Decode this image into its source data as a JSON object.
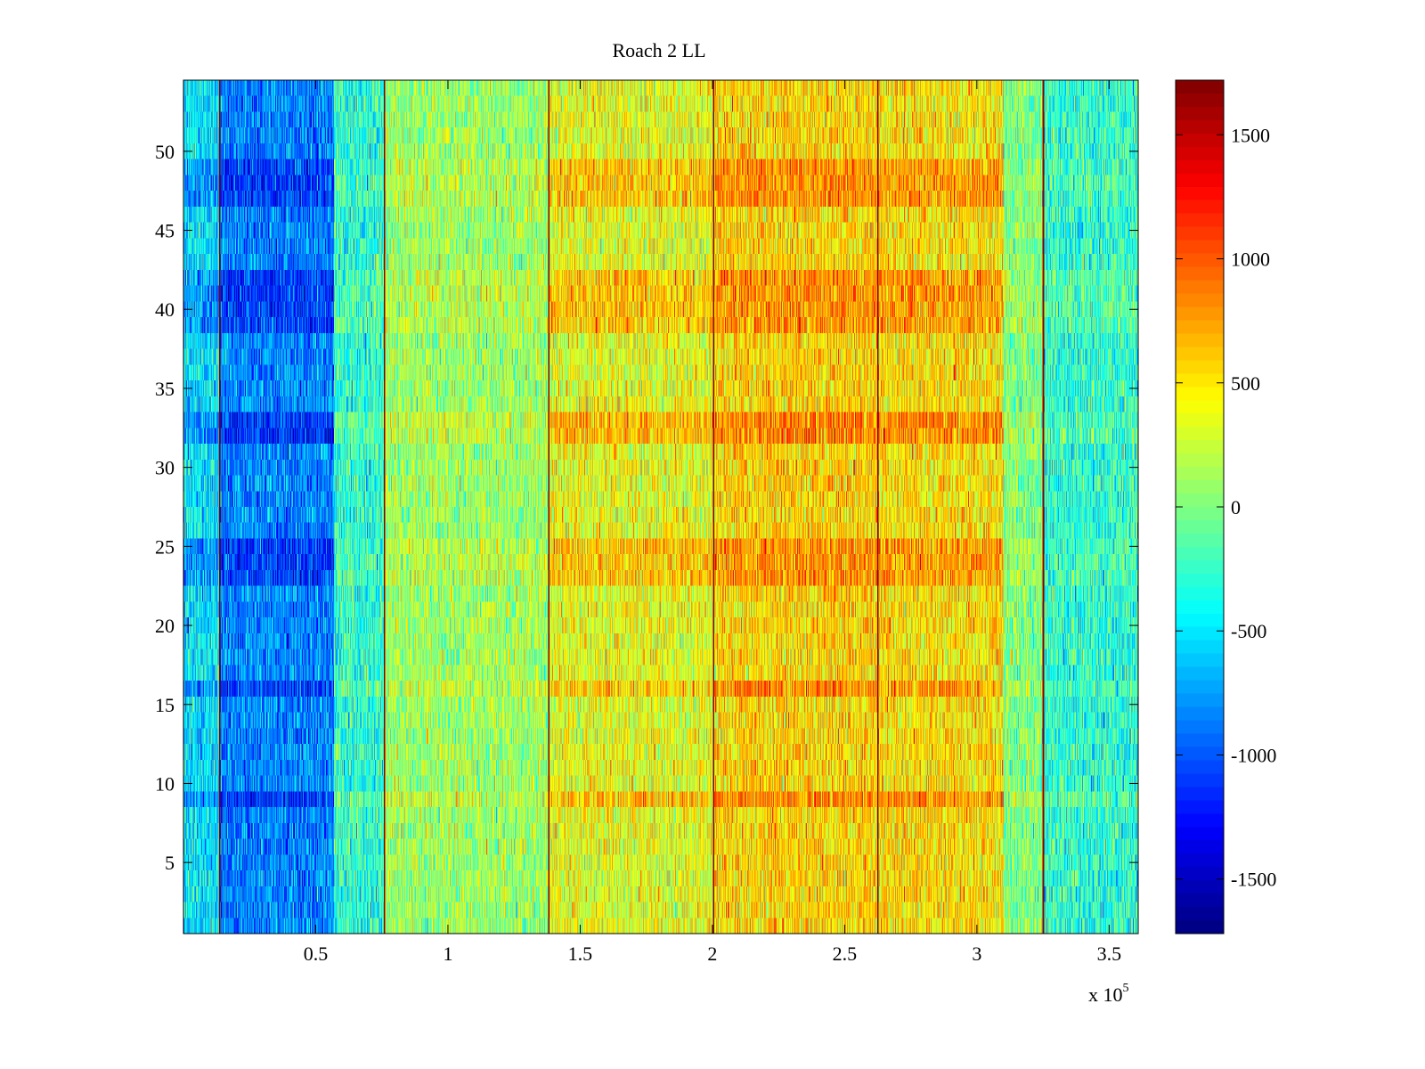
{
  "chart_data": {
    "type": "heatmap",
    "title": "Roach 2 LL",
    "xlabel": "",
    "ylabel": "",
    "x_multiplier_label": "x 10",
    "x_multiplier_exponent": "5",
    "xlim": [
      0,
      361000
    ],
    "ylim": [
      0.5,
      54.5
    ],
    "rows": 54,
    "columns": 2048,
    "x_ticks": [
      {
        "value": 50000,
        "label": "0.5"
      },
      {
        "value": 100000,
        "label": "1"
      },
      {
        "value": 150000,
        "label": "1.5"
      },
      {
        "value": 200000,
        "label": "2"
      },
      {
        "value": 250000,
        "label": "2.5"
      },
      {
        "value": 300000,
        "label": "3"
      },
      {
        "value": 350000,
        "label": "3.5"
      }
    ],
    "y_ticks": [
      {
        "value": 5,
        "label": "5"
      },
      {
        "value": 10,
        "label": "10"
      },
      {
        "value": 15,
        "label": "15"
      },
      {
        "value": 20,
        "label": "20"
      },
      {
        "value": 25,
        "label": "25"
      },
      {
        "value": 30,
        "label": "30"
      },
      {
        "value": 35,
        "label": "35"
      },
      {
        "value": 40,
        "label": "40"
      },
      {
        "value": 45,
        "label": "45"
      },
      {
        "value": 50,
        "label": "50"
      }
    ],
    "color_range": [
      -1720,
      1720
    ],
    "colormap": "jet",
    "colorbar_ticks": [
      {
        "value": 1500,
        "label": "1500"
      },
      {
        "value": 1000,
        "label": "1000"
      },
      {
        "value": 500,
        "label": "500"
      },
      {
        "value": 0,
        "label": "0"
      },
      {
        "value": -500,
        "label": "-500"
      },
      {
        "value": -1000,
        "label": "-1000"
      },
      {
        "value": -1500,
        "label": "-1500"
      }
    ],
    "saturated_columns_x": [
      13500,
      76000,
      138000,
      200500,
      262500,
      325000
    ],
    "saturated_value": 1720,
    "band_means": [
      {
        "x_range": [
          0,
          13500
        ],
        "mean": -500
      },
      {
        "x_range": [
          13500,
          57000
        ],
        "mean": -850
      },
      {
        "x_range": [
          57000,
          76000
        ],
        "mean": -300
      },
      {
        "x_range": [
          76000,
          138000
        ],
        "mean": 100
      },
      {
        "x_range": [
          138000,
          200500
        ],
        "mean": 350
      },
      {
        "x_range": [
          200500,
          262500
        ],
        "mean": 550
      },
      {
        "x_range": [
          262500,
          310000
        ],
        "mean": 500
      },
      {
        "x_range": [
          310000,
          325000
        ],
        "mean": 0
      },
      {
        "x_range": [
          325000,
          361000
        ],
        "mean": -300
      }
    ],
    "row_effects": [
      {
        "rows": [
          9,
          9
        ],
        "effect": 300
      },
      {
        "rows": [
          16,
          16
        ],
        "effect": 250
      },
      {
        "rows": [
          23,
          25
        ],
        "effect": 250
      },
      {
        "rows": [
          32,
          33
        ],
        "effect": 300
      },
      {
        "rows": [
          39,
          42
        ],
        "effect": 250
      },
      {
        "rows": [
          47,
          49
        ],
        "effect": 250
      }
    ],
    "noise_amplitude": 300
  },
  "colors": {
    "axes_background": "#ffffff",
    "axis": "#000000"
  }
}
